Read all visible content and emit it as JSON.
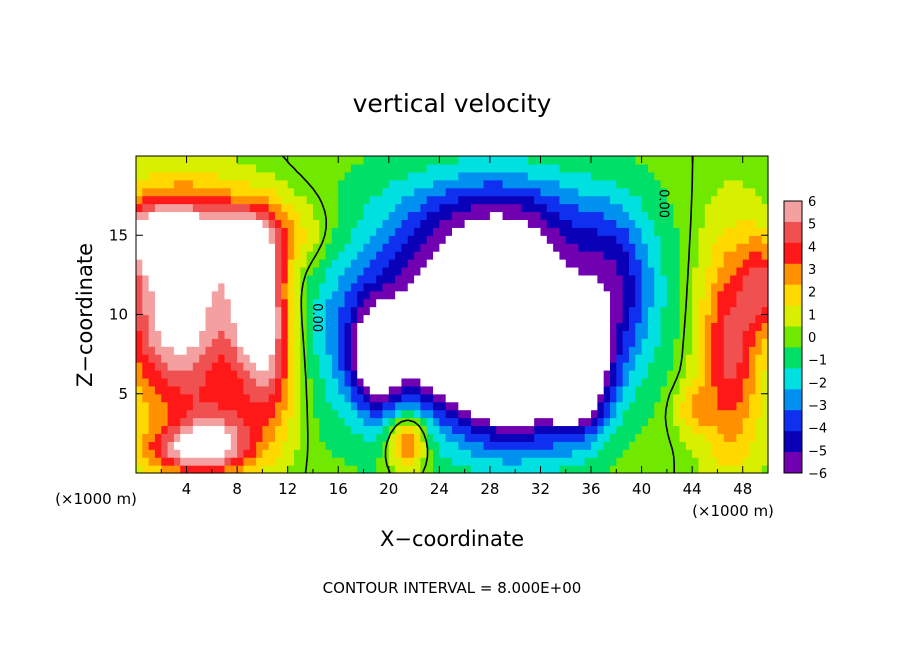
{
  "chart_data": {
    "type": "heatmap",
    "title": "vertical velocity",
    "xlabel": "X−coordinate",
    "ylabel": "Z−coordinate",
    "x_unit_label_left": "(×1000 m)",
    "x_unit_label_right": "(×1000 m)",
    "footnote": "CONTOUR INTERVAL = 8.000E+00",
    "xlim": [
      0,
      50
    ],
    "ylim": [
      0,
      20
    ],
    "x_ticks": [
      4,
      8,
      12,
      16,
      20,
      24,
      28,
      32,
      36,
      40,
      44,
      48
    ],
    "y_ticks": [
      5,
      10,
      15
    ],
    "colorbar_levels": [
      6,
      5,
      4,
      3,
      2,
      1,
      0,
      -1,
      -2,
      -3,
      -4,
      -5,
      -6
    ],
    "colorbar_labels": [
      "6",
      "5",
      "4",
      "3",
      "2",
      "1",
      "0",
      "−1",
      "−2",
      "−3",
      "−4",
      "−5",
      "−6"
    ],
    "colorbar_colors": [
      "#f4a0a0",
      "#f05050",
      "#ff1818",
      "#ff9000",
      "#ffd800",
      "#d8f000",
      "#70e800",
      "#00e068",
      "#00e0e0",
      "#0090f0",
      "#1030f0",
      "#0a00b8",
      "#7000b0"
    ],
    "contour_labels": [
      "0.00",
      "0.00"
    ],
    "field_blobs": [
      {
        "x": 3.5,
        "y": 10.5,
        "rx": 4.5,
        "ry": 6.5,
        "value": 8
      },
      {
        "x": 9.5,
        "y": 11.5,
        "rx": 2.0,
        "ry": 4.0,
        "value": 7
      },
      {
        "x": 8,
        "y": 15,
        "rx": 6,
        "ry": 2.5,
        "value": 4.5
      },
      {
        "x": 1,
        "y": 15,
        "rx": 3,
        "ry": 2,
        "value": 4.5
      },
      {
        "x": 10.5,
        "y": 7,
        "rx": 2.5,
        "ry": 5,
        "value": 5
      },
      {
        "x": 4.5,
        "y": 1.5,
        "rx": 4,
        "ry": 1.5,
        "value": 5
      },
      {
        "x": 6.5,
        "y": 2.5,
        "rx": 3,
        "ry": 2.5,
        "value": 3.5
      },
      {
        "x": 21.5,
        "y": 2,
        "rx": 1.5,
        "ry": 1.8,
        "value": 5
      },
      {
        "x": 47,
        "y": 8,
        "rx": 2.5,
        "ry": 7,
        "value": 5
      },
      {
        "x": 49.5,
        "y": 12,
        "rx": 1.5,
        "ry": 3,
        "value": 4
      },
      {
        "x": 44,
        "y": 4,
        "rx": 1.5,
        "ry": 1.5,
        "value": 2
      },
      {
        "x": 25,
        "y": 10,
        "rx": 11,
        "ry": 8,
        "value": -2.5
      },
      {
        "x": 22,
        "y": 9,
        "rx": 7,
        "ry": 5,
        "value": -4
      },
      {
        "x": 31,
        "y": 11,
        "rx": 8,
        "ry": 6,
        "value": -4.5
      },
      {
        "x": 30,
        "y": 7,
        "rx": 4.5,
        "ry": 5,
        "value": -8
      },
      {
        "x": 35,
        "y": 6,
        "rx": 2.5,
        "ry": 3.5,
        "value": -7
      },
      {
        "x": 26,
        "y": 8,
        "rx": 3,
        "ry": 3,
        "value": -5
      },
      {
        "x": 19,
        "y": 7,
        "rx": 2,
        "ry": 3,
        "value": -5
      },
      {
        "x": 28,
        "y": 16,
        "rx": 7,
        "ry": 3,
        "value": -3
      },
      {
        "x": 38,
        "y": 12,
        "rx": 3,
        "ry": 5,
        "value": -3
      }
    ]
  }
}
